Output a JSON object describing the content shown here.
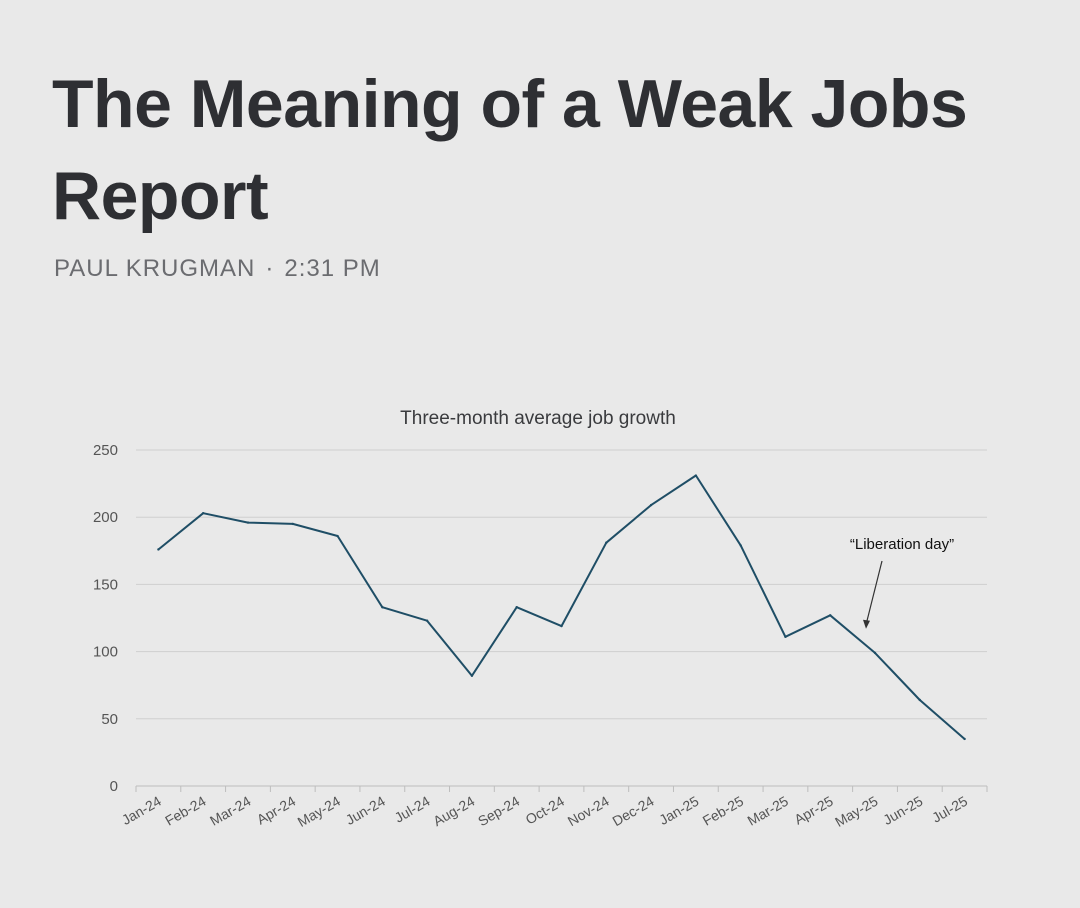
{
  "article": {
    "title": "The Meaning of a Weak Jobs Report",
    "author": "PAUL KRUGMAN",
    "separator": "·",
    "time": "2:31 PM"
  },
  "colors": {
    "line": "#1f4e66",
    "grid": "#cfcfcf",
    "background": "#e9e9e9"
  },
  "chart_data": {
    "type": "line",
    "title": "Three-month average job growth",
    "xlabel": "",
    "ylabel": "",
    "ylim": [
      0,
      250
    ],
    "yticks": [
      0,
      50,
      100,
      150,
      200,
      250
    ],
    "grid": true,
    "categories": [
      "Jan-24",
      "Feb-24",
      "Mar-24",
      "Apr-24",
      "May-24",
      "Jun-24",
      "Jul-24",
      "Aug-24",
      "Sep-24",
      "Oct-24",
      "Nov-24",
      "Dec-24",
      "Jan-25",
      "Feb-25",
      "Mar-25",
      "Apr-25",
      "May-25",
      "Jun-25",
      "Jul-25"
    ],
    "values": [
      176,
      203,
      196,
      195,
      186,
      133,
      123,
      82,
      133,
      119,
      181,
      209,
      231,
      179,
      111,
      127,
      99,
      64,
      35
    ],
    "annotations": [
      {
        "text": "“Liberation day”",
        "points_to": "Apr-25 / May-25",
        "value": 117
      }
    ]
  }
}
